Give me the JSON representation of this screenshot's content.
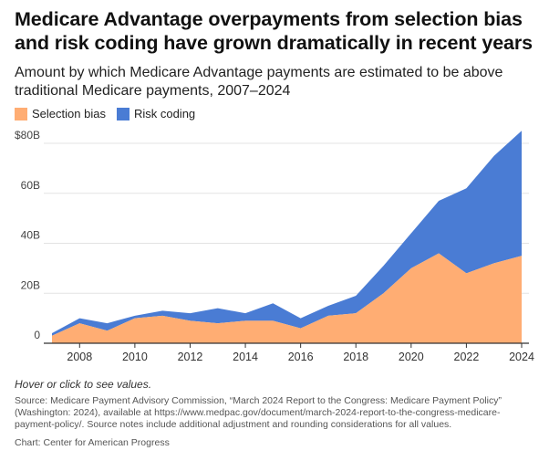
{
  "title": "Medicare Advantage overpayments from selection bias and risk coding have grown dramatically in recent years",
  "subtitle": "Amount by which Medicare Advantage payments are estimated to be above traditional Medicare payments, 2007–2024",
  "hover_note": "Hover or click to see values.",
  "source": "Source: Medicare Payment Advisory Commission, “March 2024 Report to the Congress: Medicare Payment Policy” (Washington: 2024), available at https://www.medpac.gov/document/march-2024-report-to-the-congress-medicare-payment-policy/. Source notes include additional adjustment and rounding considerations for all values.",
  "credit": "Chart: Center for American Progress",
  "colors": {
    "selection_bias": "#FFAD73",
    "risk_coding": "#4A7CD4",
    "axis": "#333333",
    "grid": "#E3E3E3"
  },
  "chart_data": {
    "type": "area",
    "stacked": true,
    "x": [
      2007,
      2008,
      2009,
      2010,
      2011,
      2012,
      2013,
      2014,
      2015,
      2016,
      2017,
      2018,
      2019,
      2020,
      2021,
      2022,
      2023,
      2024
    ],
    "series": [
      {
        "name": "Selection bias",
        "values": [
          3,
          8,
          5,
          10,
          11,
          9,
          8,
          9,
          9,
          6,
          11,
          12,
          20,
          30,
          36,
          28,
          32,
          35
        ]
      },
      {
        "name": "Risk coding",
        "values": [
          1,
          2,
          3,
          1,
          2,
          3,
          6,
          3,
          7,
          4,
          4,
          7,
          11,
          14,
          21,
          34,
          43,
          50
        ]
      }
    ],
    "ylim": [
      0,
      85
    ],
    "y_ticks": [
      0,
      20,
      40,
      60,
      80
    ],
    "y_tick_labels": [
      "0",
      "20B",
      "40B",
      "60B",
      "$80B"
    ],
    "x_ticks": [
      2008,
      2010,
      2012,
      2014,
      2016,
      2018,
      2020,
      2022,
      2024
    ],
    "x_tick_labels": [
      "2008",
      "2010",
      "2012",
      "2014",
      "2016",
      "2018",
      "2020",
      "2022",
      "2024"
    ],
    "grid": true,
    "legend_position": "top-left"
  }
}
